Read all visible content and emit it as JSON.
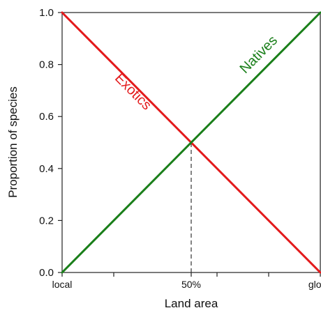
{
  "chart_data": {
    "type": "line",
    "xlabel": "Land area",
    "ylabel": "Proportion of species",
    "xlim": [
      0,
      1
    ],
    "ylim": [
      0,
      1
    ],
    "x_ticks": [
      {
        "value": 0,
        "label": "local"
      },
      {
        "value": 0.2,
        "label": ""
      },
      {
        "value": 0.5,
        "label": "50%"
      },
      {
        "value": 0.6,
        "label": ""
      },
      {
        "value": 0.8,
        "label": ""
      },
      {
        "value": 1,
        "label": "globe"
      }
    ],
    "y_ticks": [
      {
        "value": 0,
        "label": "0.0"
      },
      {
        "value": 0.2,
        "label": "0.2"
      },
      {
        "value": 0.4,
        "label": "0.4"
      },
      {
        "value": 0.6,
        "label": "0.6"
      },
      {
        "value": 0.8,
        "label": "0.8"
      },
      {
        "value": 1,
        "label": "1.0"
      }
    ],
    "series": [
      {
        "name": "Exotics",
        "color": "#e31a1c",
        "x": [
          0,
          1
        ],
        "y": [
          1,
          0
        ]
      },
      {
        "name": "Natives",
        "color": "#1a7f1a",
        "x": [
          0,
          1
        ],
        "y": [
          0,
          1
        ]
      }
    ],
    "reference_line": {
      "x": 0.5,
      "y_from": 0,
      "y_to": 0.5,
      "style": "dashed",
      "color": "#333333"
    },
    "grid": false,
    "legend": "none"
  }
}
